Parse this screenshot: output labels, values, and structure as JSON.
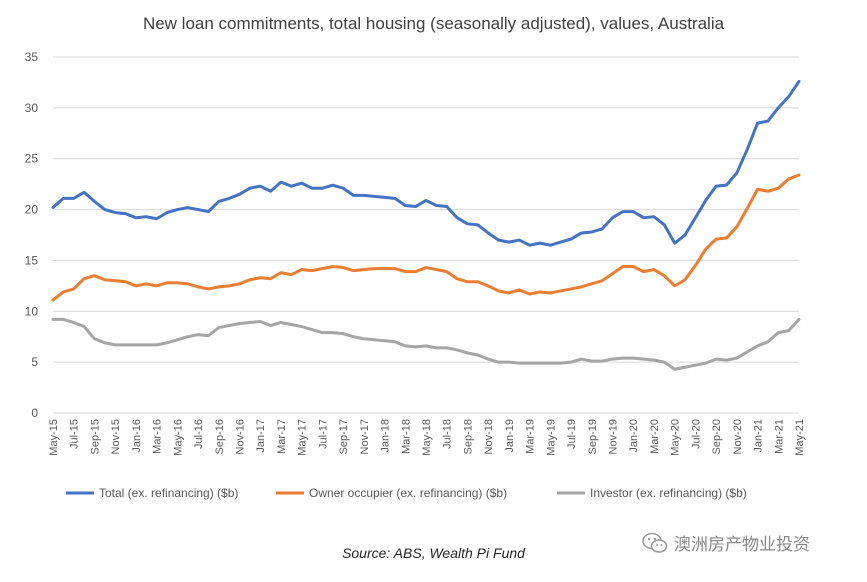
{
  "chart_data": {
    "type": "line",
    "title": "New loan commitments, total housing (seasonally adjusted), values, Australia",
    "xlabel": "",
    "ylabel": "",
    "ylim": [
      0,
      35
    ],
    "yticks": [
      "0",
      "5",
      "10",
      "15",
      "20",
      "25",
      "30",
      "35"
    ],
    "grid": true,
    "legend_position": "bottom",
    "tick_labels": [
      "May-15",
      "Jul-15",
      "Sep-15",
      "Nov-15",
      "Jan-16",
      "Mar-16",
      "May-16",
      "Jul-16",
      "Sep-16",
      "Nov-16",
      "Jan-17",
      "Mar-17",
      "May-17",
      "Jul-17",
      "Sep-17",
      "Nov-17",
      "Jan-18",
      "Mar-18",
      "May-18",
      "Jul-18",
      "Sep-18",
      "Nov-18",
      "Jan-19",
      "Mar-19",
      "May-19",
      "Jul-19",
      "Sep-19",
      "Nov-19",
      "Jan-20",
      "Mar-20",
      "May-20",
      "Jul-20",
      "Sep-20",
      "Nov-20",
      "Jan-21",
      "Mar-21",
      "May-21"
    ],
    "x": [
      "May-15",
      "Jun-15",
      "Jul-15",
      "Aug-15",
      "Sep-15",
      "Oct-15",
      "Nov-15",
      "Dec-15",
      "Jan-16",
      "Feb-16",
      "Mar-16",
      "Apr-16",
      "May-16",
      "Jun-16",
      "Jul-16",
      "Aug-16",
      "Sep-16",
      "Oct-16",
      "Nov-16",
      "Dec-16",
      "Jan-17",
      "Feb-17",
      "Mar-17",
      "Apr-17",
      "May-17",
      "Jun-17",
      "Jul-17",
      "Aug-17",
      "Sep-17",
      "Oct-17",
      "Nov-17",
      "Dec-17",
      "Jan-18",
      "Feb-18",
      "Mar-18",
      "Apr-18",
      "May-18",
      "Jun-18",
      "Jul-18",
      "Aug-18",
      "Sep-18",
      "Oct-18",
      "Nov-18",
      "Dec-18",
      "Jan-19",
      "Feb-19",
      "Mar-19",
      "Apr-19",
      "May-19",
      "Jun-19",
      "Jul-19",
      "Aug-19",
      "Sep-19",
      "Oct-19",
      "Nov-19",
      "Dec-19",
      "Jan-20",
      "Feb-20",
      "Mar-20",
      "Apr-20",
      "May-20",
      "Jun-20",
      "Jul-20",
      "Aug-20",
      "Sep-20",
      "Oct-20",
      "Nov-20",
      "Dec-20",
      "Jan-21",
      "Feb-21",
      "Mar-21",
      "Apr-21",
      "May-21"
    ],
    "series": [
      {
        "name": "Total (ex. refinancing) ($b)",
        "color": "#4472C4",
        "values": [
          20.2,
          21.1,
          21.1,
          21.7,
          20.8,
          20.0,
          19.7,
          19.6,
          19.2,
          19.3,
          19.1,
          19.7,
          20.0,
          20.2,
          20.0,
          19.8,
          20.8,
          21.1,
          21.5,
          22.1,
          22.3,
          21.8,
          22.7,
          22.3,
          22.6,
          22.1,
          22.1,
          22.4,
          22.1,
          21.4,
          21.4,
          21.3,
          21.2,
          21.1,
          20.4,
          20.3,
          20.9,
          20.4,
          20.3,
          19.2,
          18.6,
          18.5,
          17.7,
          17.0,
          16.8,
          17.0,
          16.5,
          16.7,
          16.5,
          16.8,
          17.1,
          17.7,
          17.8,
          18.1,
          19.2,
          19.8,
          19.8,
          19.2,
          19.3,
          18.5,
          16.7,
          17.5,
          19.2,
          20.9,
          22.3,
          22.4,
          23.6,
          25.9,
          28.5,
          28.7,
          30.0,
          31.1,
          32.6
        ]
      },
      {
        "name": "Owner occupier (ex. refinancing) ($b)",
        "color": "#ED7D31",
        "values": [
          11.1,
          11.9,
          12.2,
          13.2,
          13.5,
          13.1,
          13.0,
          12.9,
          12.5,
          12.7,
          12.5,
          12.8,
          12.8,
          12.7,
          12.4,
          12.2,
          12.4,
          12.5,
          12.7,
          13.1,
          13.3,
          13.2,
          13.8,
          13.6,
          14.1,
          14.0,
          14.2,
          14.4,
          14.3,
          14.0,
          14.1,
          14.2,
          14.2,
          14.2,
          13.9,
          13.9,
          14.3,
          14.1,
          13.9,
          13.2,
          12.9,
          12.9,
          12.5,
          12.0,
          11.8,
          12.1,
          11.7,
          11.9,
          11.8,
          12.0,
          12.2,
          12.4,
          12.7,
          13.0,
          13.7,
          14.4,
          14.4,
          13.9,
          14.1,
          13.5,
          12.5,
          13.1,
          14.5,
          16.1,
          17.1,
          17.2,
          18.3,
          20.1,
          22.0,
          21.8,
          22.1,
          23.0,
          23.4
        ]
      },
      {
        "name": "Investor (ex. refinancing) ($b)",
        "color": "#A5A5A5",
        "values": [
          9.2,
          9.2,
          8.9,
          8.5,
          7.3,
          6.9,
          6.7,
          6.7,
          6.7,
          6.7,
          6.7,
          6.9,
          7.2,
          7.5,
          7.7,
          7.6,
          8.4,
          8.6,
          8.8,
          8.9,
          9.0,
          8.6,
          8.9,
          8.7,
          8.5,
          8.2,
          7.9,
          7.9,
          7.8,
          7.5,
          7.3,
          7.2,
          7.1,
          7.0,
          6.6,
          6.5,
          6.6,
          6.4,
          6.4,
          6.2,
          5.9,
          5.7,
          5.3,
          5.0,
          5.0,
          4.9,
          4.9,
          4.9,
          4.9,
          4.9,
          5.0,
          5.3,
          5.1,
          5.1,
          5.3,
          5.4,
          5.4,
          5.3,
          5.2,
          5.0,
          4.3,
          4.5,
          4.7,
          4.9,
          5.3,
          5.2,
          5.4,
          6.0,
          6.6,
          7.0,
          7.9,
          8.1,
          9.2
        ]
      }
    ]
  },
  "footer": {
    "source": "Source: ABS, Wealth Pi Fund",
    "watermark_text": "澳洲房产物业投资"
  }
}
